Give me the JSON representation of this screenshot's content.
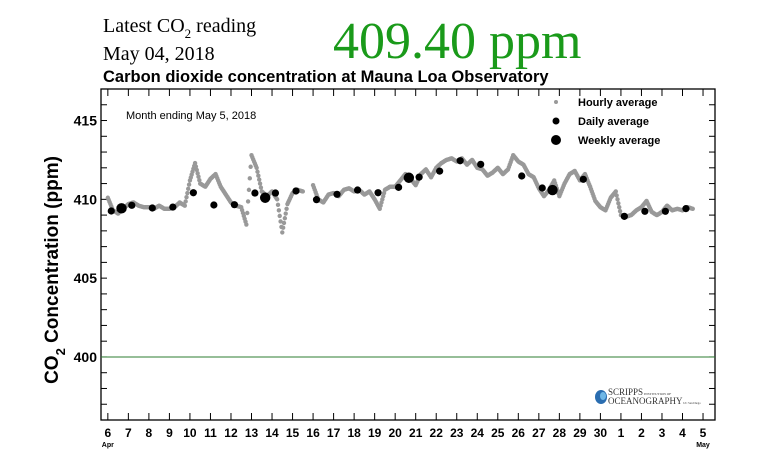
{
  "header": {
    "latest_label_pre": "Latest CO",
    "latest_label_sub": "2",
    "latest_label_post": " reading",
    "date": "May 04, 2018",
    "reading": "409.40 ppm",
    "reading_color": "#1a9a1a"
  },
  "logo": {
    "name": "SCRIPPS",
    "institution": "INSTITUTION OF",
    "line2": "OCEANOGRAPHY",
    "campus": "UC San Diego"
  },
  "chart_data": {
    "type": "scatter",
    "title": "Carbon dioxide concentration at Mauna Loa Observatory",
    "annotation": "Month ending May 5, 2018",
    "ylabel_pre": "CO",
    "ylabel_sub": "2",
    "ylabel_post": " Concentration (ppm)",
    "ylim": [
      396,
      417
    ],
    "yticks": [
      "400",
      "405",
      "410",
      "415"
    ],
    "xlim": [
      "2018-04-05T16:00",
      "2018-05-05T14:00"
    ],
    "xticks": [
      "6",
      "7",
      "8",
      "9",
      "10",
      "11",
      "12",
      "13",
      "14",
      "15",
      "16",
      "17",
      "18",
      "19",
      "20",
      "21",
      "22",
      "23",
      "24",
      "25",
      "26",
      "27",
      "28",
      "29",
      "30",
      "1",
      "2",
      "3",
      "4",
      "5"
    ],
    "xtick_month_labels": {
      "first": "Apr",
      "last": "May"
    },
    "reference_line": {
      "value": 400,
      "color": "#2e7d32"
    },
    "legend": {
      "placement": "top-right",
      "entries": [
        "Hourly average",
        "Daily average",
        "Weekly average"
      ]
    },
    "series": [
      {
        "name": "Hourly average",
        "color": "#999999",
        "sample_hours": [
          0,
          6,
          12,
          18
        ],
        "days": [
          {
            "date": "2018-04-06",
            "values": [
              410.1,
              409.3,
              409.1,
              409.4
            ]
          },
          {
            "date": "2018-04-07",
            "values": [
              409.7,
              409.8,
              409.6,
              409.5
            ]
          },
          {
            "date": "2018-04-08",
            "values": [
              409.5,
              409.4,
              409.6,
              409.4
            ]
          },
          {
            "date": "2018-04-09",
            "values": [
              409.4,
              409.5,
              409.8,
              409.6
            ]
          },
          {
            "date": "2018-04-10",
            "values": [
              411.2,
              412.3,
              411.0,
              410.8
            ]
          },
          {
            "date": "2018-04-11",
            "values": [
              411.3,
              411.6,
              410.8,
              410.3
            ]
          },
          {
            "date": "2018-04-12",
            "values": [
              409.8,
              409.6,
              409.5,
              408.4
            ]
          },
          {
            "date": "2018-04-13",
            "values": [
              412.8,
              412.0,
              410.5,
              410.2
            ]
          },
          {
            "date": "2018-04-14",
            "values": [
              410.5,
              410.0,
              407.9,
              409.7
            ]
          },
          {
            "date": "2018-04-15",
            "values": [
              410.4,
              410.6,
              410.5,
              null
            ]
          },
          {
            "date": "2018-04-16",
            "values": [
              410.9,
              410.0,
              409.8,
              410.3
            ]
          },
          {
            "date": "2018-04-17",
            "values": [
              410.4,
              410.2,
              410.6,
              410.7
            ]
          },
          {
            "date": "2018-04-18",
            "values": [
              410.5,
              410.6,
              410.3,
              410.5
            ]
          },
          {
            "date": "2018-04-19",
            "values": [
              410.0,
              409.4,
              410.6,
              410.8
            ]
          },
          {
            "date": "2018-04-20",
            "values": [
              410.8,
              411.2,
              411.6,
              411.3
            ]
          },
          {
            "date": "2018-04-21",
            "values": [
              410.9,
              411.6,
              411.9,
              411.4
            ]
          },
          {
            "date": "2018-04-22",
            "values": [
              412.0,
              412.3,
              412.5,
              412.6
            ]
          },
          {
            "date": "2018-04-23",
            "values": [
              412.4,
              412.6,
              412.2,
              412.5
            ]
          },
          {
            "date": "2018-04-24",
            "values": [
              412.0,
              411.9,
              411.5,
              411.7
            ]
          },
          {
            "date": "2018-04-25",
            "values": [
              412.0,
              411.6,
              411.9,
              412.8
            ]
          },
          {
            "date": "2018-04-26",
            "values": [
              412.4,
              412.2,
              411.6,
              411.4
            ]
          },
          {
            "date": "2018-04-27",
            "values": [
              410.7,
              410.2,
              410.6,
              411.2
            ]
          },
          {
            "date": "2018-04-28",
            "values": [
              410.2,
              411.0,
              411.6,
              411.8
            ]
          },
          {
            "date": "2018-04-29",
            "values": [
              411.2,
              411.6,
              410.8,
              409.9
            ]
          },
          {
            "date": "2018-04-30",
            "values": [
              409.5,
              409.3,
              410.1,
              410.5
            ]
          },
          {
            "date": "2018-05-01",
            "values": [
              409.0,
              408.9,
              409.0,
              409.3
            ]
          },
          {
            "date": "2018-05-02",
            "values": [
              409.5,
              409.9,
              409.2,
              409.0
            ]
          },
          {
            "date": "2018-05-03",
            "values": [
              409.2,
              409.6,
              409.3,
              409.4
            ]
          },
          {
            "date": "2018-05-04",
            "values": [
              409.3,
              409.5,
              409.4,
              null
            ]
          }
        ]
      },
      {
        "name": "Daily average",
        "color": "#000000",
        "points": [
          {
            "t": "2018-04-06T04:00",
            "v": 409.26
          },
          {
            "t": "2018-04-07T04:00",
            "v": 409.62
          },
          {
            "t": "2018-04-08T04:00",
            "v": 409.45
          },
          {
            "t": "2018-04-09T04:00",
            "v": 409.51
          },
          {
            "t": "2018-04-10T04:00",
            "v": 410.42
          },
          {
            "t": "2018-04-11T04:00",
            "v": 409.64
          },
          {
            "t": "2018-04-12T04:00",
            "v": 409.66
          },
          {
            "t": "2018-04-13T04:00",
            "v": 410.4
          },
          {
            "t": "2018-04-14T04:00",
            "v": 410.4
          },
          {
            "t": "2018-04-15T04:00",
            "v": 410.53
          },
          {
            "t": "2018-04-16T04:00",
            "v": 409.98
          },
          {
            "t": "2018-04-17T04:00",
            "v": 410.32
          },
          {
            "t": "2018-04-18T04:00",
            "v": 410.59
          },
          {
            "t": "2018-04-19T04:00",
            "v": 410.42
          },
          {
            "t": "2018-04-20T04:00",
            "v": 410.76
          },
          {
            "t": "2018-04-21T04:00",
            "v": 411.41
          },
          {
            "t": "2018-04-22T04:00",
            "v": 411.79
          },
          {
            "t": "2018-04-23T04:00",
            "v": 412.45
          },
          {
            "t": "2018-04-24T04:00",
            "v": 412.22
          },
          {
            "t": "2018-04-26T04:00",
            "v": 411.48
          },
          {
            "t": "2018-04-27T04:00",
            "v": 410.72
          },
          {
            "t": "2018-04-29T04:00",
            "v": 411.27
          },
          {
            "t": "2018-05-01T04:00",
            "v": 408.92
          },
          {
            "t": "2018-05-02T04:00",
            "v": 409.24
          },
          {
            "t": "2018-05-03T04:00",
            "v": 409.24
          },
          {
            "t": "2018-05-04T04:00",
            "v": 409.41
          }
        ]
      },
      {
        "name": "Weekly average",
        "color": "#000000",
        "points": [
          {
            "t": "2018-04-06T16:00",
            "v": 409.43
          },
          {
            "t": "2018-04-13T16:00",
            "v": 410.1
          },
          {
            "t": "2018-04-20T16:00",
            "v": 411.37
          },
          {
            "t": "2018-04-27T16:00",
            "v": 410.59
          }
        ]
      }
    ]
  }
}
